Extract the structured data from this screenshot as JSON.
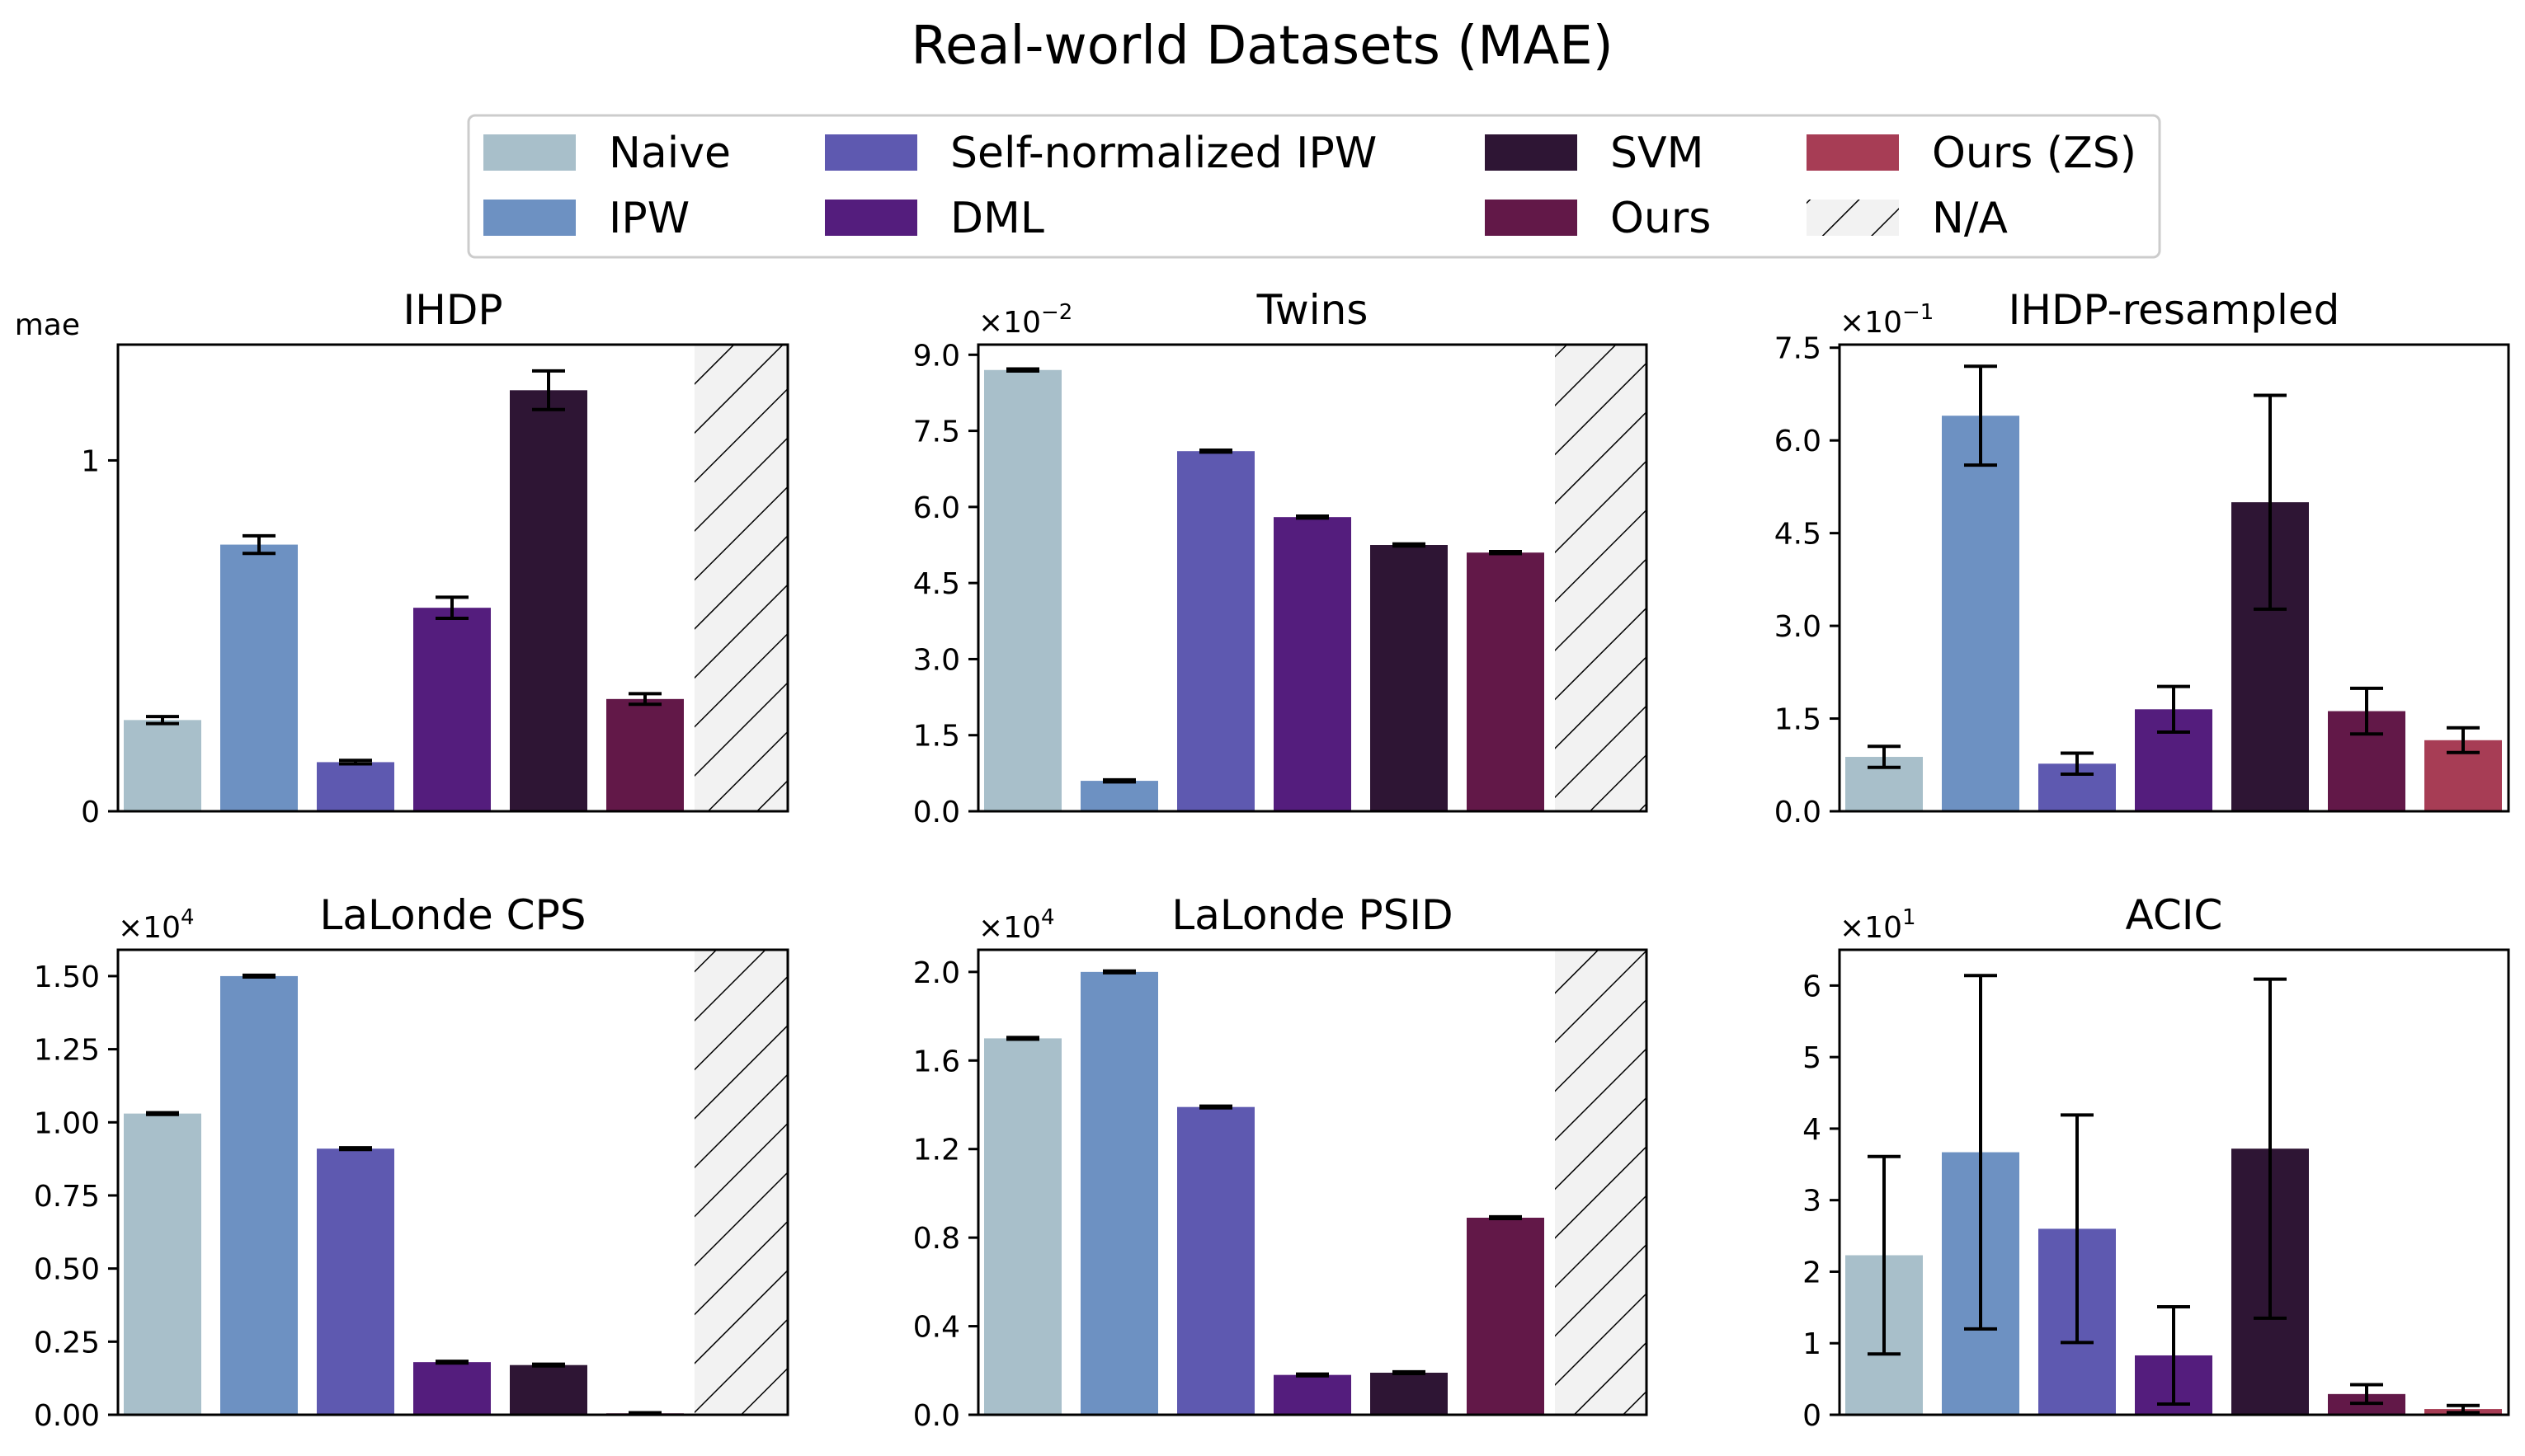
{
  "figure": {
    "title": "Real-world Datasets (MAE)",
    "na_label": "N/A",
    "colors": {
      "Naive": "#a8bfca",
      "IPW": "#6d91c2",
      "Self-normalized IPW": "#5e59b0",
      "DML": "#541d7d",
      "SVM": "#2e1534",
      "Ours": "#621848",
      "Ours (ZS)": "#a73d55",
      "na_fill": "#f2f2f2"
    }
  },
  "legend": {
    "placement": "top-center",
    "entries": [
      "Naive",
      "IPW",
      "Self-normalized IPW",
      "DML",
      "SVM",
      "Ours",
      "Ours (ZS)",
      "N/A"
    ]
  },
  "chart_data": [
    {
      "type": "bar",
      "title": "IHDP",
      "ylabel": "mae",
      "offset_text": "",
      "categories": [
        "Naive",
        "IPW",
        "Self-normalized IPW",
        "DML",
        "SVM",
        "Ours",
        "Ours (ZS)"
      ],
      "values": [
        0.26,
        0.76,
        0.14,
        0.58,
        1.2,
        0.32,
        null
      ],
      "errors": [
        0.01,
        0.025,
        0.005,
        0.03,
        0.055,
        0.015,
        null
      ],
      "ylim": [
        0,
        1.33
      ],
      "yticks": [
        {
          "v": 0,
          "label": "0"
        },
        {
          "v": 1,
          "label": "1"
        }
      ],
      "na": true
    },
    {
      "type": "bar",
      "title": "Twins",
      "ylabel": "",
      "offset_text": "×10",
      "offset_exp": "−2",
      "categories": [
        "Naive",
        "IPW",
        "Self-normalized IPW",
        "DML",
        "SVM",
        "Ours",
        "Ours (ZS)"
      ],
      "values": [
        8.7,
        0.6,
        7.1,
        5.8,
        5.25,
        5.1,
        null
      ],
      "errors": [
        0.02,
        0.02,
        0.02,
        0.02,
        0.02,
        0.02,
        null
      ],
      "ylim": [
        0,
        9.2
      ],
      "yticks": [
        {
          "v": 0,
          "label": "0.0"
        },
        {
          "v": 1.5,
          "label": "1.5"
        },
        {
          "v": 3,
          "label": "3.0"
        },
        {
          "v": 4.5,
          "label": "4.5"
        },
        {
          "v": 6,
          "label": "6.0"
        },
        {
          "v": 7.5,
          "label": "7.5"
        },
        {
          "v": 9,
          "label": "9.0"
        }
      ],
      "na": true
    },
    {
      "type": "bar",
      "title": "IHDP-resampled",
      "ylabel": "",
      "offset_text": "×10",
      "offset_exp": "−1",
      "categories": [
        "Naive",
        "IPW",
        "Self-normalized IPW",
        "DML",
        "SVM",
        "Ours",
        "Ours (ZS)"
      ],
      "values": [
        0.88,
        6.4,
        0.77,
        1.65,
        5.0,
        1.62,
        1.15
      ],
      "errors": [
        0.17,
        0.8,
        0.17,
        0.37,
        1.73,
        0.37,
        0.2
      ],
      "ylim": [
        0,
        7.55
      ],
      "yticks": [
        {
          "v": 0,
          "label": "0.0"
        },
        {
          "v": 1.5,
          "label": "1.5"
        },
        {
          "v": 3,
          "label": "3.0"
        },
        {
          "v": 4.5,
          "label": "4.5"
        },
        {
          "v": 6,
          "label": "6.0"
        },
        {
          "v": 7.5,
          "label": "7.5"
        }
      ],
      "na": false
    },
    {
      "type": "bar",
      "title": "LaLonde CPS",
      "ylabel": "",
      "offset_text": "×10",
      "offset_exp": "4",
      "categories": [
        "Naive",
        "IPW",
        "Self-normalized IPW",
        "DML",
        "SVM",
        "Ours",
        "Ours (ZS)"
      ],
      "values": [
        1.03,
        1.5,
        0.91,
        0.18,
        0.17,
        0.005,
        null
      ],
      "errors": [
        0.003,
        0.003,
        0.003,
        0.003,
        0.003,
        0.002,
        null
      ],
      "ylim": [
        0,
        1.59
      ],
      "yticks": [
        {
          "v": 0,
          "label": "0.00"
        },
        {
          "v": 0.25,
          "label": "0.25"
        },
        {
          "v": 0.5,
          "label": "0.50"
        },
        {
          "v": 0.75,
          "label": "0.75"
        },
        {
          "v": 1,
          "label": "1.00"
        },
        {
          "v": 1.25,
          "label": "1.25"
        },
        {
          "v": 1.5,
          "label": "1.50"
        }
      ],
      "na": true
    },
    {
      "type": "bar",
      "title": "LaLonde PSID",
      "ylabel": "",
      "offset_text": "×10",
      "offset_exp": "4",
      "categories": [
        "Naive",
        "IPW",
        "Self-normalized IPW",
        "DML",
        "SVM",
        "Ours",
        "Ours (ZS)"
      ],
      "values": [
        1.7,
        2.0,
        1.39,
        0.18,
        0.19,
        0.89,
        null
      ],
      "errors": [
        0.004,
        0.004,
        0.004,
        0.004,
        0.004,
        0.004,
        null
      ],
      "ylim": [
        0,
        2.1
      ],
      "yticks": [
        {
          "v": 0,
          "label": "0.0"
        },
        {
          "v": 0.4,
          "label": "0.4"
        },
        {
          "v": 0.8,
          "label": "0.8"
        },
        {
          "v": 1.2,
          "label": "1.2"
        },
        {
          "v": 1.6,
          "label": "1.6"
        },
        {
          "v": 2,
          "label": "2.0"
        }
      ],
      "na": true
    },
    {
      "type": "bar",
      "title": "ACIC",
      "ylabel": "",
      "offset_text": "×10",
      "offset_exp": "1",
      "categories": [
        "Naive",
        "IPW",
        "Self-normalized IPW",
        "DML",
        "SVM",
        "Ours",
        "Ours (ZS)"
      ],
      "values": [
        2.23,
        3.67,
        2.6,
        0.83,
        3.72,
        0.29,
        0.08
      ],
      "errors": [
        1.38,
        2.47,
        1.59,
        0.68,
        2.37,
        0.13,
        0.05
      ],
      "ylim": [
        0,
        6.5
      ],
      "yticks": [
        {
          "v": 0,
          "label": "0"
        },
        {
          "v": 1,
          "label": "1"
        },
        {
          "v": 2,
          "label": "2"
        },
        {
          "v": 3,
          "label": "3"
        },
        {
          "v": 4,
          "label": "4"
        },
        {
          "v": 5,
          "label": "5"
        },
        {
          "v": 6,
          "label": "6"
        }
      ],
      "na": false
    }
  ]
}
